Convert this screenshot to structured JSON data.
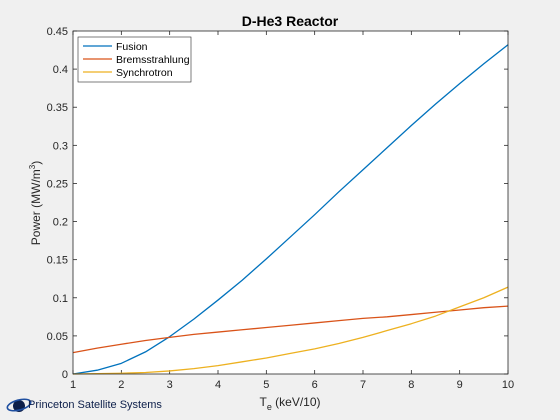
{
  "chart_data": {
    "type": "line",
    "title": "D-He3 Reactor",
    "xlabel_main": "T",
    "xlabel_sub": "e",
    "xlabel_rest": " (keV/10)",
    "ylabel_main": "Power (MW/m",
    "ylabel_sup": "3",
    "ylabel_rest": ")",
    "xlim": [
      1,
      10
    ],
    "ylim": [
      0,
      0.45
    ],
    "xticks": [
      1,
      2,
      3,
      4,
      5,
      6,
      7,
      8,
      9,
      10
    ],
    "yticks": [
      0,
      0.05,
      0.1,
      0.15,
      0.2,
      0.25,
      0.3,
      0.35,
      0.4,
      0.45
    ],
    "ytick_labels": [
      "0",
      "0.05",
      "0.1",
      "0.15",
      "0.2",
      "0.25",
      "0.3",
      "0.35",
      "0.4",
      "0.45"
    ],
    "grid": false,
    "legend_position": "top-left",
    "x": [
      1,
      1.5,
      2,
      2.5,
      3,
      3.5,
      4,
      4.5,
      5,
      5.5,
      6,
      6.5,
      7,
      7.5,
      8,
      8.5,
      9,
      9.5,
      10
    ],
    "series": [
      {
        "name": "Fusion",
        "color": "#0072bd",
        "values": [
          0.0,
          0.005,
          0.014,
          0.029,
          0.049,
          0.072,
          0.097,
          0.123,
          0.151,
          0.18,
          0.209,
          0.239,
          0.268,
          0.297,
          0.326,
          0.354,
          0.381,
          0.407,
          0.432
        ]
      },
      {
        "name": "Bremsstrahlung",
        "color": "#d95319",
        "values": [
          0.028,
          0.034,
          0.039,
          0.044,
          0.048,
          0.052,
          0.055,
          0.058,
          0.061,
          0.064,
          0.067,
          0.07,
          0.073,
          0.075,
          0.078,
          0.081,
          0.084,
          0.087,
          0.089
        ]
      },
      {
        "name": "Synchrotron",
        "color": "#edb120",
        "values": [
          0.0,
          0.0005,
          0.001,
          0.002,
          0.004,
          0.007,
          0.011,
          0.016,
          0.021,
          0.027,
          0.033,
          0.04,
          0.048,
          0.057,
          0.066,
          0.076,
          0.088,
          0.1,
          0.114
        ]
      }
    ]
  },
  "branding": {
    "company": "Princeton Satellite Systems",
    "colors": {
      "orbit": "#1f4fa0",
      "planet": "#0d1f4a"
    }
  }
}
